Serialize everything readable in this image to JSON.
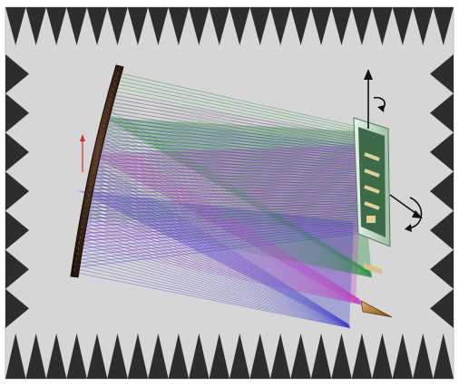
{
  "figure": {
    "caption": "",
    "description_elements": [
      "anechoic-chamber",
      "reflector-dish",
      "feed-horn",
      "planar-antenna-under-test",
      "ray-bundles",
      "rotation-axes"
    ]
  },
  "colors": {
    "chamber_background": "#d6d6d6",
    "absorber_cones": "#2d2d2d",
    "reflector": "#3a2418",
    "ray_green": "#1f8f3a",
    "ray_magenta": "#c43cc4",
    "ray_blue": "#3a3acb",
    "feed_horn": "#b07838",
    "antenna_board": "#3d6b4a"
  },
  "icons": {
    "rotation_top": "curved-arrow-icon",
    "rotation_side": "curved-arrow-icon",
    "axis_arrow": "up-arrow-icon"
  }
}
